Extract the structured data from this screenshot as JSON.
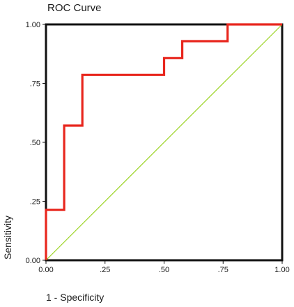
{
  "chart_data": {
    "type": "line",
    "title": "ROC Curve",
    "xlabel": "1 - Specificity",
    "ylabel": "Sensitivity",
    "xlim": [
      0,
      1
    ],
    "ylim": [
      0,
      1
    ],
    "x_ticks": [
      0,
      0.25,
      0.5,
      0.75,
      1
    ],
    "x_tick_labels": [
      "0.00",
      ".25",
      ".50",
      ".75",
      "1.00"
    ],
    "y_ticks": [
      0,
      0.25,
      0.5,
      0.75,
      1
    ],
    "y_tick_labels": [
      "0.00",
      ".25",
      ".50",
      ".75",
      "1.00"
    ],
    "series": [
      {
        "color": "#e8261d",
        "x": [
          0,
          0,
          0.077,
          0.077,
          0.154,
          0.154,
          0.5,
          0.5,
          0.577,
          0.577,
          0.769,
          0.769,
          1
        ],
        "y": [
          0,
          0.214,
          0.214,
          0.571,
          0.571,
          0.786,
          0.786,
          0.857,
          0.857,
          0.929,
          0.929,
          1,
          1
        ]
      },
      {
        "color": "#9ad321",
        "x": [
          0,
          1
        ],
        "y": [
          0,
          1
        ]
      }
    ],
    "grid": false
  }
}
